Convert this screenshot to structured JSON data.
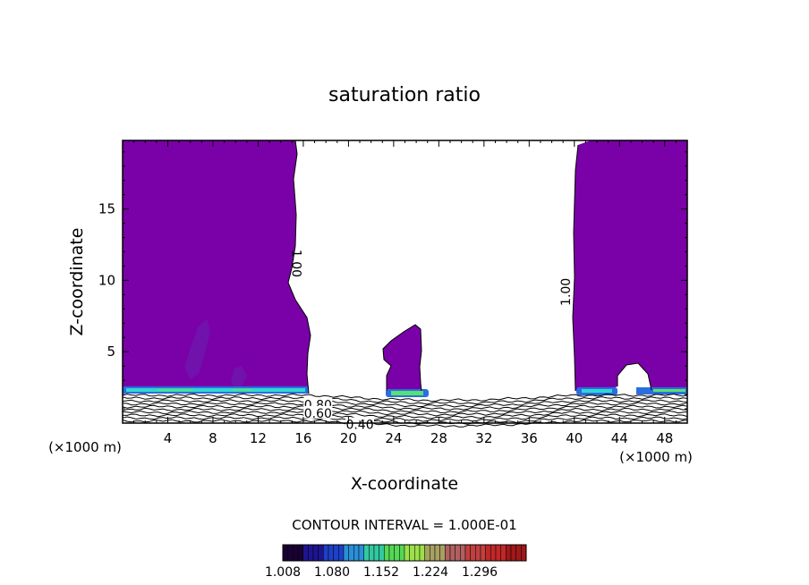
{
  "chart_data": {
    "type": "contour",
    "title": "saturation ratio",
    "xlabel": "X-coordinate",
    "ylabel": "Z-coordinate",
    "x_unit_label": "(×1000 m)",
    "x_unit_label_right": "(×1000 m)",
    "xlim": [
      0,
      50
    ],
    "ylim": [
      0,
      19.8
    ],
    "x_ticks": [
      4,
      8,
      12,
      16,
      20,
      24,
      28,
      32,
      36,
      40,
      44,
      48
    ],
    "x_tick_labels": [
      "4",
      "8",
      "12",
      "16",
      "20",
      "24",
      "28",
      "32",
      "36",
      "40",
      "44",
      "48"
    ],
    "y_ticks": [
      5,
      10,
      15
    ],
    "y_tick_labels": [
      "5",
      "10",
      "15"
    ],
    "contour_interval_text": "CONTOUR INTERVAL = 1.000E-01",
    "contour_labels": [
      {
        "text": "1.00",
        "x": 15.0,
        "z": 11.5,
        "rotate": 90
      },
      {
        "text": "1.00",
        "x": 39.6,
        "z": 9.5,
        "rotate": -90
      },
      {
        "text": "0.80",
        "x": 17.3,
        "z": 1.3,
        "rotate": 0
      },
      {
        "text": "0.60",
        "x": 17.3,
        "z": 0.7,
        "rotate": 0
      },
      {
        "text": "0.40",
        "x": 21.0,
        "z": -0.1,
        "rotate": 0
      }
    ],
    "colorbar": {
      "tick_labels": [
        "1.008",
        "1.080",
        "1.152",
        "1.224",
        "1.296"
      ],
      "colors": [
        "#1a0033",
        "#1d1490",
        "#1e40c8",
        "#2a8fd8",
        "#33c8a0",
        "#55d855",
        "#9ce04a",
        "#a8a060",
        "#b06060",
        "#c04040",
        "#c02828",
        "#a01818"
      ]
    },
    "colors": {
      "saturated_region": "#7a00a8",
      "cloud_base_bands": [
        "#2a6ee0",
        "#30d8d0",
        "#58e070"
      ],
      "contour_lines": "#000000"
    }
  }
}
